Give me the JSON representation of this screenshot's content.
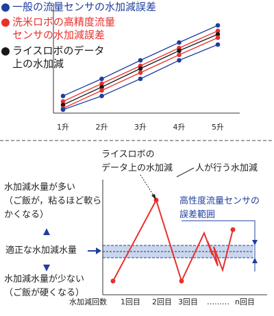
{
  "chart_data": {
    "type": "line",
    "categories": [
      "1升",
      "2升",
      "3升",
      "4升",
      "5升"
    ],
    "ylim": [
      0,
      160
    ],
    "series": [
      {
        "name": "一般の流量センサの水加減誤差",
        "color": "#1f3f9e",
        "values": [
          25,
          50,
          77,
          103,
          128
        ]
      },
      {
        "name": "洗米ロボの高精度流量\nセンサの水加減誤差",
        "color": "#e8302c",
        "values": [
          17,
          43,
          69,
          95,
          120
        ]
      },
      {
        "name": "ライスロボのデータ\n上の水加減",
        "color": "#1a1a1a",
        "values": [
          12,
          38,
          65,
          91,
          115
        ]
      },
      {
        "color": "#e8302c",
        "values": [
          7,
          33,
          59,
          85,
          110
        ]
      },
      {
        "color": "#1f3f9e",
        "values": [
          5,
          25,
          50,
          77,
          100
        ]
      }
    ]
  },
  "diagram": {
    "label_data": "ライスロボの\nデータ上の水加減",
    "label_human": "人が行う水加減",
    "label_range": "高性度流量センサの\n誤差範囲",
    "label_more": "水加減水量が多い\n（ご飯が，粘るほど軟ら\nかくなる）",
    "label_proper": "適正な水加減水量",
    "label_less": "水加減水量が少ない\n（ご飯が硬くなる）",
    "x_title": "水加減回数",
    "x_labels": [
      "1回目",
      "2回目",
      "3回目",
      "………",
      "n回目"
    ]
  }
}
